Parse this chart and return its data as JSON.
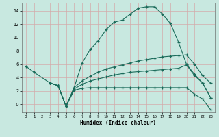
{
  "xlabel": "Humidex (Indice chaleur)",
  "bg_color": "#c8e8e0",
  "grid_color": "#d4aaaa",
  "line_color": "#1a6b5a",
  "xlim": [
    -0.5,
    23.5
  ],
  "ylim": [
    -1.2,
    15.2
  ],
  "xticks": [
    0,
    1,
    2,
    3,
    4,
    5,
    6,
    7,
    8,
    9,
    10,
    11,
    12,
    13,
    14,
    15,
    16,
    17,
    18,
    19,
    20,
    21,
    22,
    23
  ],
  "yticks": [
    0,
    2,
    4,
    6,
    8,
    10,
    12,
    14
  ],
  "ytick_labels": [
    "-0",
    "2",
    "4",
    "6",
    "8",
    "10",
    "12",
    "14"
  ],
  "c1_x": [
    0,
    1,
    3,
    4,
    5,
    6,
    7,
    8,
    9,
    10,
    11,
    12,
    13,
    14,
    15,
    16,
    17,
    18,
    19,
    20,
    21,
    22,
    23
  ],
  "c1_y": [
    5.7,
    4.8,
    3.2,
    2.8,
    -0.3,
    2.5,
    6.2,
    8.2,
    9.5,
    11.2,
    12.3,
    12.6,
    13.5,
    14.4,
    14.6,
    14.6,
    13.5,
    12.1,
    9.3,
    6.0,
    4.5,
    3.2,
    1.0
  ],
  "c2_x": [
    3,
    4,
    5,
    6,
    7,
    8,
    9,
    10,
    11,
    12,
    13,
    14,
    15,
    16,
    17,
    18,
    19,
    20,
    21,
    22,
    23
  ],
  "c2_y": [
    3.2,
    2.8,
    -0.3,
    2.5,
    3.5,
    4.2,
    4.8,
    5.3,
    5.6,
    5.9,
    6.2,
    6.5,
    6.7,
    6.9,
    7.1,
    7.2,
    7.3,
    7.4,
    6.0,
    4.3,
    3.2
  ],
  "c3_x": [
    3,
    4,
    5,
    6,
    7,
    8,
    9,
    10,
    11,
    12,
    13,
    14,
    15,
    16,
    17,
    18,
    19,
    20,
    21,
    22,
    23
  ],
  "c3_y": [
    3.2,
    2.8,
    -0.3,
    2.3,
    3.0,
    3.5,
    3.8,
    4.1,
    4.4,
    4.6,
    4.8,
    4.9,
    5.0,
    5.1,
    5.2,
    5.3,
    5.4,
    5.9,
    4.3,
    3.2,
    1.0
  ],
  "c4_x": [
    3,
    4,
    5,
    6,
    7,
    8,
    9,
    10,
    11,
    12,
    13,
    14,
    15,
    16,
    17,
    18,
    19,
    20,
    21,
    22,
    23
  ],
  "c4_y": [
    3.2,
    2.8,
    -0.3,
    2.1,
    2.4,
    2.5,
    2.5,
    2.5,
    2.5,
    2.5,
    2.5,
    2.5,
    2.5,
    2.5,
    2.5,
    2.5,
    2.5,
    2.5,
    1.5,
    0.8,
    -0.8
  ]
}
